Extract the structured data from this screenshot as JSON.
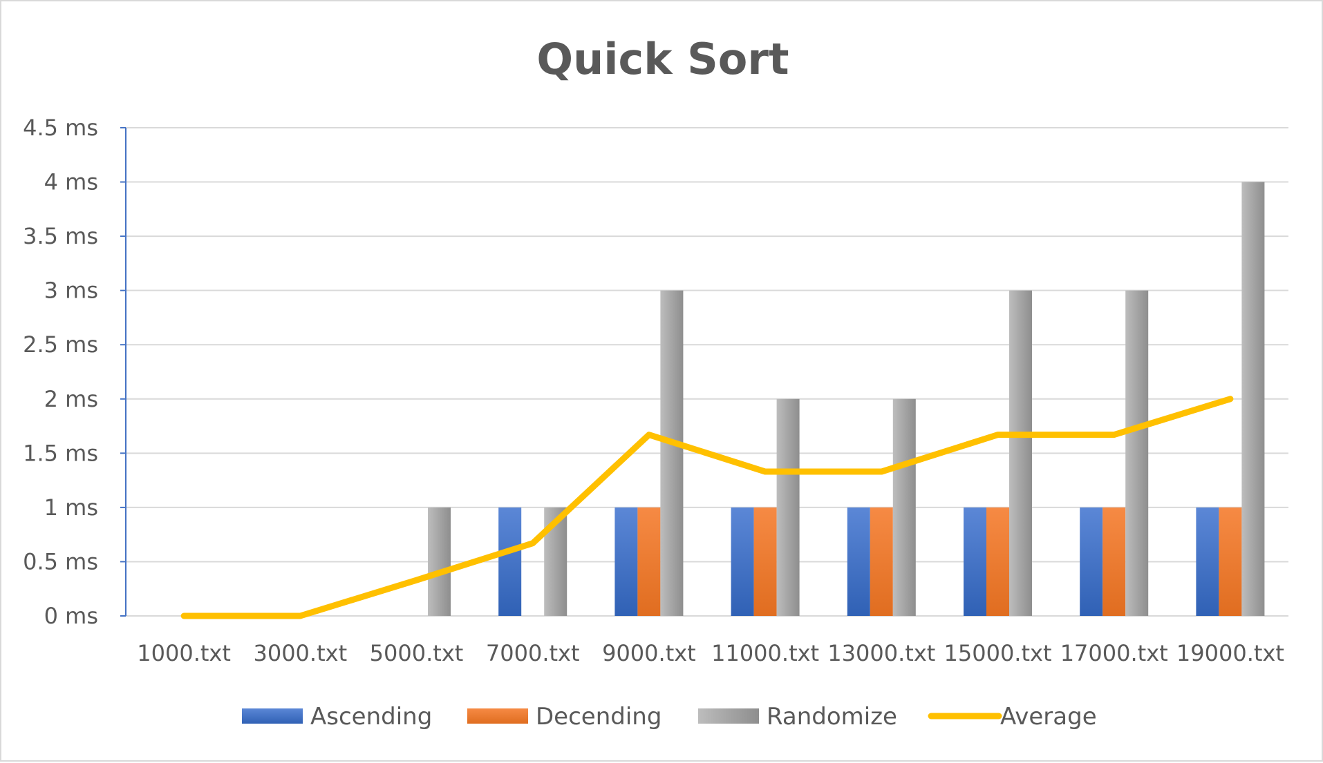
{
  "chart_data": {
    "type": "bar",
    "title": "Quick Sort",
    "xlabel": "",
    "ylabel": "",
    "categories": [
      "1000.txt",
      "3000.txt",
      "5000.txt",
      "7000.txt",
      "9000.txt",
      "11000.txt",
      "13000.txt",
      "15000.txt",
      "17000.txt",
      "19000.txt"
    ],
    "ylim": [
      0,
      4.5
    ],
    "y_ticks": [
      0,
      0.5,
      1,
      1.5,
      2,
      2.5,
      3,
      3.5,
      4,
      4.5
    ],
    "y_unit": "ms",
    "grid": true,
    "legend_position": "bottom",
    "series": [
      {
        "name": "Ascending",
        "kind": "bar",
        "color": "#4472c4",
        "values": [
          0,
          0,
          0,
          1,
          1,
          1,
          1,
          1,
          1,
          1
        ]
      },
      {
        "name": "Decending",
        "kind": "bar",
        "color": "#ed7d31",
        "values": [
          0,
          0,
          0,
          0,
          1,
          1,
          1,
          1,
          1,
          1
        ]
      },
      {
        "name": "Randomize",
        "kind": "bar",
        "color": "#a5a5a5",
        "values": [
          0,
          0,
          1,
          1,
          3,
          2,
          2,
          3,
          3,
          4
        ]
      },
      {
        "name": "Average",
        "kind": "line",
        "color": "#ffc000",
        "values": [
          0,
          0,
          0.33,
          0.67,
          1.67,
          1.33,
          1.33,
          1.67,
          1.67,
          2
        ]
      }
    ]
  }
}
